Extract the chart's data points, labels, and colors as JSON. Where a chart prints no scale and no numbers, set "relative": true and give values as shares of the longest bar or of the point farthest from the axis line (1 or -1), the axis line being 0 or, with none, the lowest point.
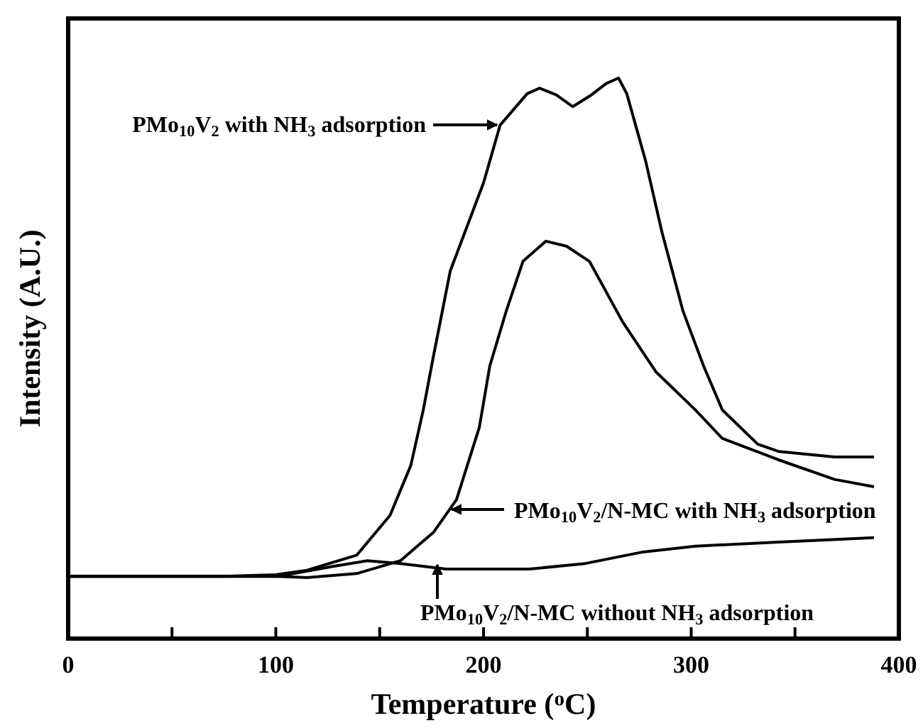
{
  "chart_data": {
    "type": "line",
    "relative": true,
    "xlabel": "Temperature ($^{o}$C)",
    "ylabel": "Intensity (A.U.)",
    "xlim": [
      0,
      400
    ],
    "xticks": [
      0,
      {
        "value": 50,
        "label": null
      },
      100,
      {
        "value": 150,
        "label": null
      },
      200,
      {
        "value": 250,
        "label": null
      },
      300,
      {
        "value": 350,
        "label": null
      },
      400
    ],
    "tick_labels": "x",
    "grid": false,
    "line_style": "solid",
    "marker": "none",
    "series": [
      {
        "color": "#000000",
        "x": [
          0,
          74,
          100,
          115,
          139,
          155,
          165,
          171,
          176,
          184,
          200,
          208,
          221,
          227,
          235,
          243,
          252,
          259,
          265,
          269,
          278,
          286,
          296,
          306,
          315,
          332,
          342,
          369,
          388
        ],
        "values": [
          0.111,
          0.111,
          0.114,
          0.122,
          0.149,
          0.22,
          0.309,
          0.408,
          0.506,
          0.656,
          0.813,
          0.916,
          0.972,
          0.982,
          0.97,
          0.949,
          0.97,
          0.99,
          1.0,
          0.972,
          0.853,
          0.724,
          0.585,
          0.486,
          0.408,
          0.347,
          0.334,
          0.324,
          0.324
        ]
      },
      {
        "color": "#000000",
        "x": [
          0,
          100,
          115,
          139,
          160,
          176,
          187,
          198,
          203,
          211,
          219,
          230,
          240,
          251,
          267,
          283,
          302,
          315,
          342,
          369,
          388
        ],
        "values": [
          0.111,
          0.111,
          0.109,
          0.116,
          0.139,
          0.19,
          0.248,
          0.377,
          0.486,
          0.585,
          0.673,
          0.709,
          0.7,
          0.673,
          0.565,
          0.476,
          0.408,
          0.357,
          0.319,
          0.284,
          0.271
        ]
      },
      {
        "color": "#000000",
        "x": [
          0,
          101,
          128,
          144,
          160,
          182,
          222,
          249,
          276,
          302,
          342,
          388
        ],
        "values": [
          0.111,
          0.111,
          0.129,
          0.139,
          0.134,
          0.124,
          0.124,
          0.134,
          0.154,
          0.165,
          0.172,
          0.18
        ]
      }
    ],
    "annotations": [
      "PMo$_{10}$V$_{2}$ with NH$_{3}$ adsorption",
      "PMo$_{10}$V$_{2}$/N-MC with NH$_{3}$ adsorption",
      "PMo$_{10}$V$_{2}$/N-MC without NH$_{3}$ adsorption"
    ]
  }
}
